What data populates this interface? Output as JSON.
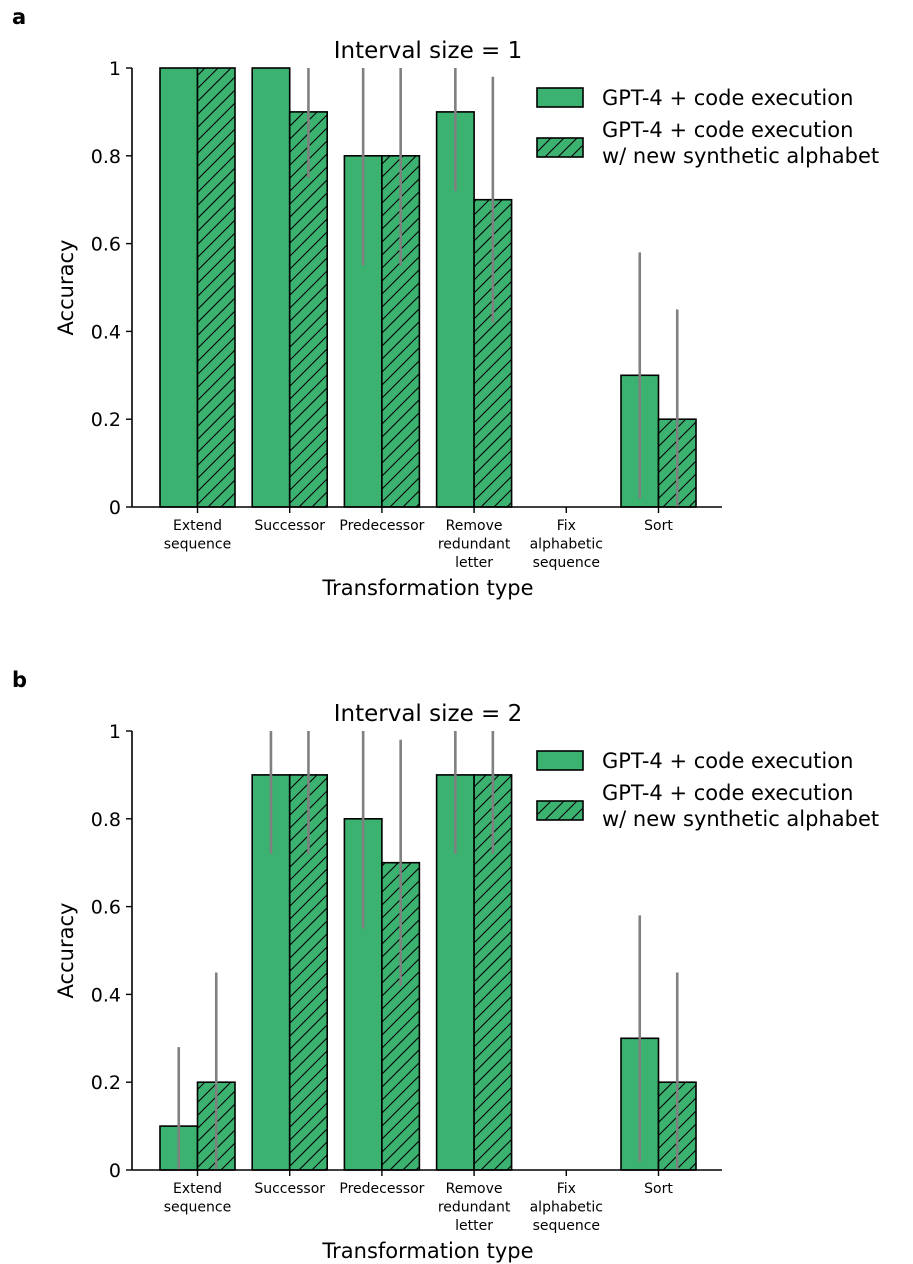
{
  "legend": {
    "solid_label": "GPT-4 + code execution",
    "hatched_label_line1": "GPT-4 + code execution",
    "hatched_label_line2": "w/ new synthetic alphabet"
  },
  "colors": {
    "bar": "#3bb26f",
    "error": "#808080",
    "edge": "#000000"
  },
  "chart_data": [
    {
      "type": "bar",
      "panel_letter": "a",
      "title": "Interval size = 1",
      "xlabel": "Transformation type",
      "ylabel": "Accuracy",
      "ylim": [
        0,
        1
      ],
      "yticks": [
        "0",
        "0.2",
        "0.4",
        "0.6",
        "0.8",
        "1"
      ],
      "categories": [
        [
          "Extend",
          "sequence"
        ],
        [
          "Successor"
        ],
        [
          "Predecessor"
        ],
        [
          "Remove",
          "redundant",
          "letter"
        ],
        [
          "Fix",
          "alphabetic",
          "sequence"
        ],
        [
          "Sort"
        ]
      ],
      "series": [
        {
          "name": "GPT-4 + code execution",
          "hatched": false,
          "values": [
            1.0,
            1.0,
            0.8,
            0.9,
            0.0,
            0.3
          ],
          "err_low": [
            1.0,
            1.0,
            0.55,
            0.72,
            0.0,
            0.02
          ],
          "err_high": [
            1.0,
            1.0,
            1.0,
            1.0,
            0.0,
            0.58
          ]
        },
        {
          "name": "GPT-4 + code execution w/ new synthetic alphabet",
          "hatched": true,
          "values": [
            1.0,
            0.9,
            0.8,
            0.7,
            0.0,
            0.2
          ],
          "err_low": [
            1.0,
            0.75,
            0.55,
            0.42,
            0.0,
            0.0
          ],
          "err_high": [
            1.0,
            1.0,
            1.0,
            0.98,
            0.0,
            0.45
          ]
        }
      ],
      "legend_position": "top-right"
    },
    {
      "type": "bar",
      "panel_letter": "b",
      "title": "Interval size = 2",
      "xlabel": "Transformation type",
      "ylabel": "Accuracy",
      "ylim": [
        0,
        1
      ],
      "yticks": [
        "0",
        "0.2",
        "0.4",
        "0.6",
        "0.8",
        "1"
      ],
      "categories": [
        [
          "Extend",
          "sequence"
        ],
        [
          "Successor"
        ],
        [
          "Predecessor"
        ],
        [
          "Remove",
          "redundant",
          "letter"
        ],
        [
          "Fix",
          "alphabetic",
          "sequence"
        ],
        [
          "Sort"
        ]
      ],
      "series": [
        {
          "name": "GPT-4 + code execution",
          "hatched": false,
          "values": [
            0.1,
            0.9,
            0.8,
            0.9,
            0.0,
            0.3
          ],
          "err_low": [
            0.0,
            0.72,
            0.55,
            0.72,
            0.0,
            0.02
          ],
          "err_high": [
            0.28,
            1.0,
            1.0,
            1.0,
            0.0,
            0.58
          ]
        },
        {
          "name": "GPT-4 + code execution w/ new synthetic alphabet",
          "hatched": true,
          "values": [
            0.2,
            0.9,
            0.7,
            0.9,
            0.0,
            0.2
          ],
          "err_low": [
            0.0,
            0.72,
            0.42,
            0.72,
            0.0,
            0.0
          ],
          "err_high": [
            0.45,
            1.0,
            0.98,
            1.0,
            0.0,
            0.45
          ]
        }
      ],
      "legend_position": "top-right"
    }
  ]
}
